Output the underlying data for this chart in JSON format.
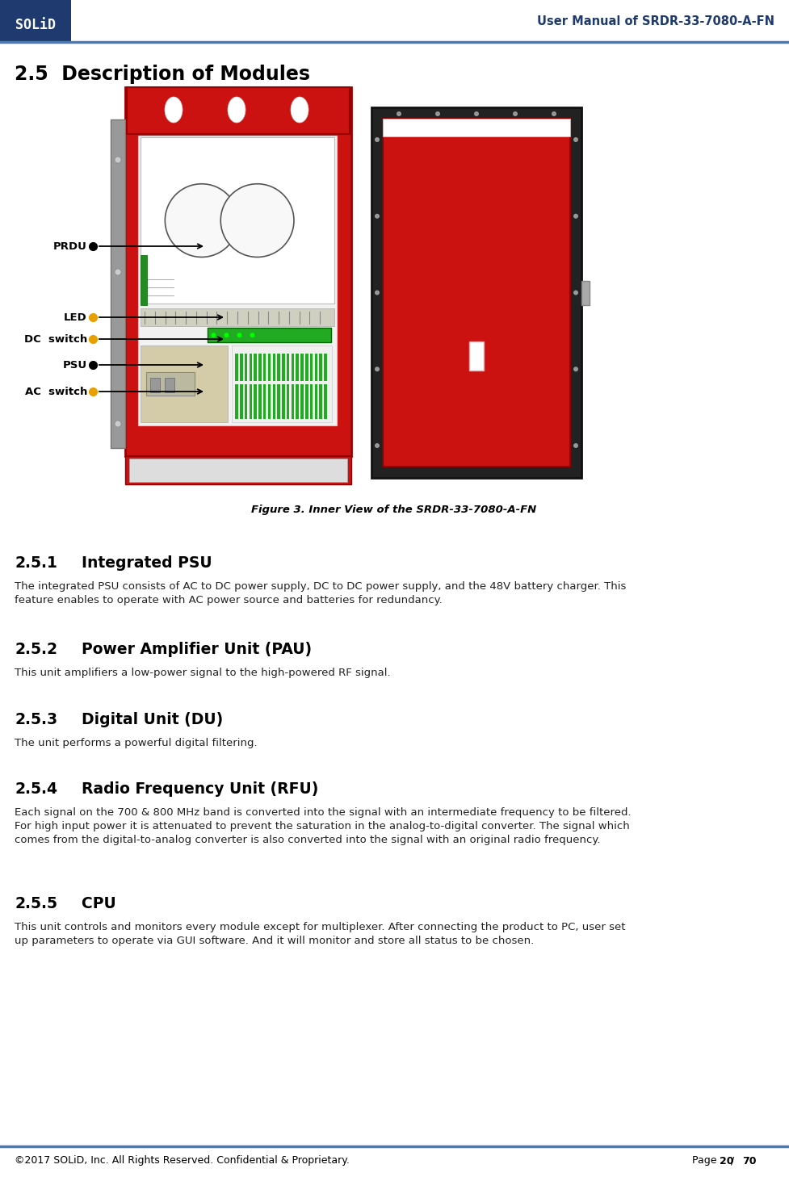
{
  "header_text": "User Manual of SRDR-33-7080-A-FN",
  "header_solid_bg": "#1e3a6e",
  "header_line_color": "#4a7ab5",
  "section_title": "2.5  Description of Modules",
  "figure_caption": "Figure 3. Inner View of the SRDR-33-7080-A-FN",
  "section_251_num": "2.5.1",
  "section_251_title": "    Integrated PSU",
  "section_251_body": "The integrated PSU consists of AC to DC power supply, DC to DC power supply, and the 48V battery charger. This\nfeature enables to operate with AC power source and batteries for redundancy.",
  "section_252_num": "2.5.2",
  "section_252_title": "    Power Amplifier Unit (PAU)",
  "section_252_body": "This unit amplifiers a low-power signal to the high-powered RF signal.",
  "section_253_num": "2.5.3",
  "section_253_title": "    Digital Unit (DU)",
  "section_253_body": "The unit performs a powerful digital filtering.",
  "section_254_num": "2.5.4",
  "section_254_title": "    Radio Frequency Unit (RFU)",
  "section_254_body": "Each signal on the 700 & 800 MHz band is converted into the signal with an intermediate frequency to be filtered.\nFor high input power it is attenuated to prevent the saturation in the analog-to-digital converter. The signal which\ncomes from the digital-to-analog converter is also converted into the signal with an original radio frequency.",
  "section_255_num": "2.5.5",
  "section_255_title": "    CPU",
  "section_255_body": "This unit controls and monitors every module except for multiplexer. After connecting the product to PC, user set\nup parameters to operate via GUI software. And it will monitor and store all status to be chosen.",
  "footer_left": "©2017 SOLiD, Inc. All Rights Reserved. Confidential & Proprietary.",
  "footer_page_bold": "20",
  "footer_total_bold": "70",
  "footer_line_color": "#4a7ab5",
  "dark_navy": "#1e3a6e",
  "red_device": "#cc1111",
  "red_dark": "#990000",
  "gray_panel": "#888888",
  "body_text_color": "#222222"
}
